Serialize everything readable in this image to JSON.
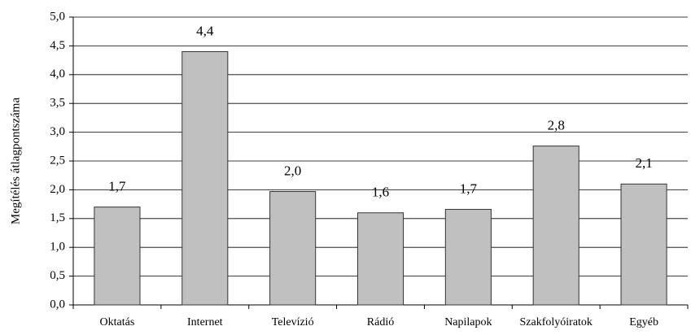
{
  "chart_data": {
    "type": "bar",
    "y_label": "Megítélés átlagpontszáma",
    "categories": [
      "Oktatás",
      "Internet",
      "Televízió",
      "Rádió",
      "Napilapok",
      "Szakfolyóiratok",
      "Egyéb"
    ],
    "values": [
      1.7,
      4.4,
      1.97,
      1.6,
      1.66,
      2.76,
      2.1
    ],
    "value_labels": [
      "1,7",
      "4,4",
      "2,0",
      "1,6",
      "1,7",
      "2,8",
      "2,1"
    ],
    "color": "#c0c0c0",
    "ylim": [
      0,
      5
    ],
    "yticks": [
      {
        "value": 0,
        "label": "0,0"
      },
      {
        "value": 0.5,
        "label": "0,5"
      },
      {
        "value": 1,
        "label": "1,0"
      },
      {
        "value": 1.5,
        "label": "1,5"
      },
      {
        "value": 2,
        "label": "2,0"
      },
      {
        "value": 2.5,
        "label": "2,5"
      },
      {
        "value": 3,
        "label": "3,0"
      },
      {
        "value": 3.5,
        "label": "3,5"
      },
      {
        "value": 4,
        "label": "4,0"
      },
      {
        "value": 4.5,
        "label": "4,5"
      },
      {
        "value": 5,
        "label": "5,0"
      }
    ],
    "grid": true
  }
}
